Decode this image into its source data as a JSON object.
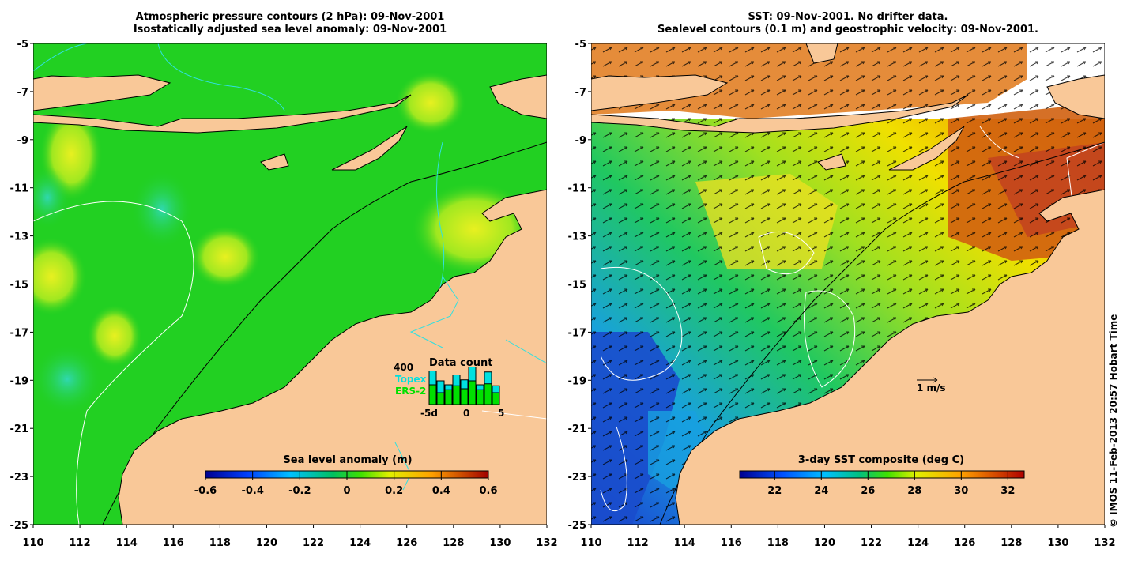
{
  "left_panel": {
    "title_line1": "Atmospheric pressure contours (2 hPa): 09-Nov-2001",
    "title_line2": "Isostatically adjusted sea level anomaly: 09-Nov-2001",
    "colorbar": {
      "label": "Sea level anomaly (m)",
      "ticks": [
        "-0.6",
        "-0.4",
        "-0.2",
        "0",
        "0.2",
        "0.4",
        "0.6"
      ]
    },
    "data_count": {
      "title": "Data count",
      "max_label": "400",
      "series": [
        {
          "name": "Topex",
          "color": "#00e0e0",
          "values": [
            340,
            240,
            200,
            300,
            250,
            380,
            200,
            330,
            190
          ]
        },
        {
          "name": "ERS-2",
          "color": "#00e000",
          "values": [
            200,
            120,
            150,
            190,
            160,
            240,
            150,
            210,
            120
          ]
        }
      ],
      "x_ticks": [
        "-5d",
        "0",
        "5"
      ]
    }
  },
  "right_panel": {
    "title_line1": "SST: 09-Nov-2001. No drifter data.",
    "title_line2": "Sealevel contours (0.1 m) and geostrophic velocity: 09-Nov-2001.",
    "colorbar": {
      "label": "3-day SST composite (deg C)",
      "ticks": [
        "22",
        "24",
        "26",
        "28",
        "30",
        "32"
      ]
    },
    "velocity_scale_label": "1 m/s"
  },
  "axes": {
    "lat_ticks": [
      "-5",
      "-7",
      "-9",
      "-11",
      "-13",
      "-15",
      "-17",
      "-19",
      "-21",
      "-23",
      "-25"
    ],
    "lon_ticks": [
      "110",
      "112",
      "114",
      "116",
      "118",
      "120",
      "122",
      "124",
      "126",
      "128",
      "130",
      "132"
    ]
  },
  "copyright": "© IMOS 11-Feb-2013 20:57 Hobart Time",
  "colors": {
    "land": "#f9c898",
    "sea_level_base": "#22d022",
    "sst_cold": "#1a4ccc",
    "sst_warm": "#d87010"
  }
}
